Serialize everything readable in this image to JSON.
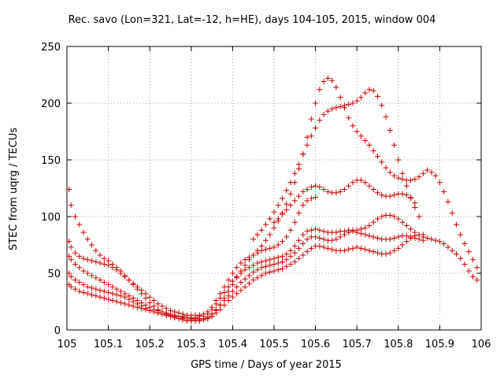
{
  "chart_data": {
    "type": "scatter",
    "title": "Rec. savo (Lon=321, Lat=-12, h=HE), days 104-105, 2015, window 004",
    "xlabel": "GPS time / Days of year 2015",
    "ylabel": "STEC from uqrg / TECUs",
    "xlim": [
      105,
      106
    ],
    "ylim": [
      0,
      250
    ],
    "xticks": [
      "105",
      "105.1",
      "105.2",
      "105.3",
      "105.4",
      "105.5",
      "105.6",
      "105.7",
      "105.8",
      "105.9",
      "106"
    ],
    "yticks": [
      "0",
      "50",
      "100",
      "150",
      "200",
      "250"
    ],
    "grid": true,
    "marker": "+",
    "color": "#cc0000",
    "series": [
      {
        "name": "",
        "x": [
          105.005,
          105.01,
          105.02,
          105.03,
          105.04,
          105.05,
          105.06,
          105.07,
          105.08,
          105.09,
          105.1,
          105.11,
          105.12,
          105.13,
          105.14,
          105.15,
          105.16,
          105.17,
          105.18,
          105.19,
          105.2,
          105.21,
          105.22,
          105.23,
          105.24,
          105.25,
          105.26,
          105.27,
          105.28,
          105.29,
          105.3,
          105.31,
          105.32,
          105.33,
          105.34,
          105.35
        ],
        "y": [
          124,
          110,
          100,
          93,
          86,
          80,
          75,
          70,
          66,
          63,
          61,
          58,
          55,
          52,
          48,
          44,
          40,
          36,
          32,
          28,
          24,
          21,
          18,
          16,
          14,
          13,
          12,
          12,
          11,
          11,
          10,
          10,
          10,
          10,
          11,
          12
        ]
      },
      {
        "name": "",
        "x": [
          105.005,
          105.01,
          105.02,
          105.03,
          105.04,
          105.05,
          105.06,
          105.07,
          105.08,
          105.09,
          105.1,
          105.11,
          105.12,
          105.13,
          105.14,
          105.15,
          105.16,
          105.17,
          105.18,
          105.19,
          105.2,
          105.21,
          105.22,
          105.23,
          105.24,
          105.25,
          105.26,
          105.27,
          105.28,
          105.29,
          105.3,
          105.31,
          105.32,
          105.33,
          105.34,
          105.35,
          105.36,
          105.37,
          105.38,
          105.39,
          105.4,
          105.41,
          105.42,
          105.43,
          105.44,
          105.45,
          105.46,
          105.47,
          105.48,
          105.49,
          105.5,
          105.51,
          105.52,
          105.53,
          105.54,
          105.55,
          105.56,
          105.57,
          105.58,
          105.59,
          105.6
        ],
        "y": [
          78,
          73,
          68,
          65,
          63,
          62,
          61,
          60,
          59,
          58,
          57,
          55,
          53,
          50,
          47,
          44,
          41,
          38,
          35,
          32,
          29,
          26,
          23,
          21,
          19,
          17,
          16,
          15,
          14,
          13,
          13,
          13,
          13,
          14,
          16,
          20,
          26,
          32,
          38,
          44,
          50,
          55,
          59,
          62,
          64,
          66,
          68,
          70,
          71,
          72,
          73,
          75,
          78,
          82,
          88,
          95,
          103,
          110,
          114,
          116,
          117
        ]
      },
      {
        "name": "",
        "x": [
          105.005,
          105.01,
          105.02,
          105.03,
          105.04,
          105.05,
          105.06,
          105.07,
          105.08,
          105.09,
          105.1,
          105.11,
          105.12,
          105.13,
          105.14,
          105.15,
          105.16,
          105.17,
          105.18,
          105.19,
          105.2,
          105.21,
          105.22,
          105.23,
          105.24,
          105.25,
          105.26,
          105.27,
          105.28,
          105.29,
          105.3,
          105.31,
          105.32,
          105.33,
          105.34,
          105.35,
          105.36,
          105.37,
          105.38,
          105.39,
          105.4,
          105.41,
          105.42,
          105.43,
          105.44,
          105.45,
          105.46,
          105.47,
          105.48,
          105.49,
          105.5,
          105.51,
          105.52,
          105.53,
          105.54,
          105.55,
          105.56,
          105.57,
          105.58,
          105.59,
          105.6,
          105.61,
          105.62,
          105.63,
          105.64,
          105.65,
          105.66,
          105.67,
          105.68,
          105.69,
          105.7,
          105.71,
          105.72,
          105.73,
          105.74,
          105.75,
          105.76,
          105.77,
          105.78,
          105.79,
          105.8,
          105.81,
          105.82,
          105.83,
          105.84,
          105.85,
          105.86,
          105.87,
          105.88,
          105.89,
          105.9,
          105.91,
          105.92,
          105.93,
          105.94,
          105.95,
          105.96,
          105.97,
          105.98,
          105.99
        ],
        "y": [
          65,
          62,
          58,
          55,
          52,
          50,
          48,
          46,
          44,
          42,
          40,
          38,
          36,
          34,
          32,
          30,
          28,
          26,
          24,
          22,
          20,
          18,
          17,
          16,
          15,
          14,
          13,
          12,
          12,
          11,
          11,
          11,
          12,
          12,
          14,
          18,
          23,
          28,
          33,
          38,
          43,
          47,
          50,
          53,
          55,
          57,
          59,
          60,
          61,
          62,
          63,
          64,
          65,
          67,
          70,
          74,
          79,
          84,
          87,
          88,
          89,
          88,
          87,
          86,
          86,
          86,
          87,
          87,
          88,
          88,
          88,
          89,
          90,
          92,
          95,
          98,
          100,
          101,
          101,
          100,
          98,
          95,
          92,
          89,
          86,
          84,
          82,
          81,
          80,
          79,
          78,
          76,
          73,
          70,
          67,
          63,
          58,
          52,
          47,
          44
        ]
      },
      {
        "name": "",
        "x": [
          105.005,
          105.01,
          105.02,
          105.03,
          105.04,
          105.05,
          105.06,
          105.07,
          105.08,
          105.09,
          105.1,
          105.11,
          105.12,
          105.13,
          105.14,
          105.15,
          105.16,
          105.17,
          105.18,
          105.19,
          105.2,
          105.21,
          105.22,
          105.23,
          105.24,
          105.25,
          105.26,
          105.27,
          105.28,
          105.29,
          105.3,
          105.31,
          105.32,
          105.33,
          105.34,
          105.35,
          105.36,
          105.37,
          105.38,
          105.39,
          105.4,
          105.41,
          105.42,
          105.43,
          105.44,
          105.45,
          105.46,
          105.47,
          105.48,
          105.49,
          105.5,
          105.51,
          105.52,
          105.53,
          105.54,
          105.55,
          105.56,
          105.57,
          105.58,
          105.59,
          105.6,
          105.61,
          105.62,
          105.63,
          105.64,
          105.65,
          105.66,
          105.67,
          105.68,
          105.69,
          105.7,
          105.71,
          105.72,
          105.73,
          105.74,
          105.75,
          105.76,
          105.77,
          105.78,
          105.79,
          105.8,
          105.81,
          105.82,
          105.83,
          105.84,
          105.85,
          105.86
        ],
        "y": [
          50,
          47,
          44,
          42,
          40,
          38,
          37,
          36,
          35,
          34,
          33,
          32,
          31,
          30,
          29,
          27,
          25,
          23,
          21,
          19,
          17,
          16,
          15,
          14,
          13,
          12,
          11,
          10,
          10,
          9,
          9,
          9,
          9,
          10,
          11,
          14,
          18,
          22,
          26,
          30,
          34,
          38,
          42,
          45,
          48,
          51,
          53,
          55,
          56,
          57,
          58,
          59,
          60,
          62,
          65,
          68,
          72,
          76,
          80,
          82,
          82,
          81,
          80,
          79,
          79,
          80,
          82,
          84,
          86,
          87,
          86,
          85,
          84,
          83,
          82,
          81,
          80,
          80,
          80,
          81,
          82,
          83,
          83,
          82,
          81,
          80,
          79
        ]
      },
      {
        "name": "",
        "x": [
          105.005,
          105.01,
          105.02,
          105.03,
          105.04,
          105.05,
          105.06,
          105.07,
          105.08,
          105.09,
          105.1,
          105.11,
          105.12,
          105.13,
          105.14,
          105.15,
          105.16,
          105.17,
          105.18,
          105.19,
          105.2,
          105.21,
          105.22,
          105.23,
          105.24,
          105.25,
          105.26,
          105.27,
          105.28,
          105.29,
          105.3,
          105.31,
          105.32,
          105.33,
          105.34,
          105.35,
          105.36,
          105.37,
          105.38,
          105.39,
          105.4,
          105.41,
          105.42,
          105.43,
          105.44,
          105.45,
          105.46,
          105.47,
          105.48,
          105.49,
          105.5,
          105.51,
          105.52,
          105.53,
          105.54,
          105.55,
          105.56,
          105.57,
          105.58,
          105.59,
          105.6,
          105.61,
          105.62,
          105.63,
          105.64,
          105.65,
          105.66,
          105.67,
          105.68,
          105.69,
          105.7,
          105.71,
          105.72,
          105.73,
          105.74,
          105.75,
          105.76,
          105.77,
          105.78,
          105.79,
          105.8,
          105.81,
          105.82,
          105.83,
          105.84,
          105.85,
          105.86
        ],
        "y": [
          40,
          38,
          36,
          34,
          33,
          32,
          31,
          30,
          29,
          28,
          27,
          26,
          25,
          24,
          23,
          22,
          21,
          20,
          19,
          18,
          17,
          16,
          15,
          14,
          13,
          12,
          11,
          10,
          9,
          8,
          8,
          8,
          8,
          9,
          10,
          12,
          15,
          18,
          22,
          26,
          29,
          32,
          35,
          38,
          41,
          44,
          46,
          48,
          50,
          51,
          52,
          53,
          54,
          56,
          58,
          60,
          63,
          66,
          69,
          72,
          74,
          74,
          73,
          72,
          71,
          70,
          70,
          70,
          71,
          72,
          73,
          72,
          71,
          70,
          69,
          68,
          67,
          67,
          68,
          70,
          72,
          75,
          78,
          81,
          83,
          84,
          84
        ]
      },
      {
        "name": "",
        "x": [
          105.35,
          105.36,
          105.37,
          105.38,
          105.39,
          105.4,
          105.41,
          105.42,
          105.43,
          105.44,
          105.45,
          105.46,
          105.47,
          105.48,
          105.49,
          105.5,
          105.51,
          105.52,
          105.53,
          105.54,
          105.55,
          105.56,
          105.57,
          105.58,
          105.59,
          105.6,
          105.61,
          105.62,
          105.63,
          105.64,
          105.65,
          105.66,
          105.67,
          105.68,
          105.69,
          105.7,
          105.71,
          105.72,
          105.73,
          105.74,
          105.75,
          105.76,
          105.77,
          105.78,
          105.79,
          105.8,
          105.81,
          105.82,
          105.83,
          105.84,
          105.85,
          105.86,
          105.87,
          105.88,
          105.89,
          105.9,
          105.91,
          105.92,
          105.93,
          105.94,
          105.95,
          105.96,
          105.97,
          105.98,
          105.99
        ],
        "y": [
          14,
          17,
          22,
          28,
          34,
          40,
          46,
          52,
          57,
          62,
          66,
          70,
          74,
          79,
          84,
          90,
          96,
          103,
          111,
          120,
          130,
          142,
          155,
          170,
          186,
          200,
          212,
          219,
          222,
          220,
          214,
          205,
          196,
          187,
          180,
          175,
          171,
          167,
          163,
          158,
          153,
          148,
          143,
          139,
          136,
          134,
          133,
          132,
          132,
          133,
          135,
          138,
          141,
          139,
          136,
          130,
          122,
          113,
          103,
          93,
          84,
          76,
          69,
          62,
          55
        ]
      },
      {
        "name": "",
        "x": [
          105.45,
          105.46,
          105.47,
          105.48,
          105.49,
          105.5,
          105.51,
          105.52,
          105.53,
          105.54,
          105.55,
          105.56,
          105.57,
          105.58,
          105.59,
          105.6,
          105.61,
          105.62,
          105.63,
          105.64,
          105.65,
          105.66,
          105.67,
          105.68,
          105.69,
          105.7,
          105.71,
          105.72,
          105.73,
          105.74,
          105.75,
          105.76,
          105.77,
          105.78,
          105.79,
          105.8,
          105.81,
          105.82,
          105.83,
          105.84,
          105.85
        ],
        "y": [
          80,
          84,
          88,
          93,
          98,
          104,
          110,
          116,
          123,
          130,
          138,
          146,
          155,
          163,
          171,
          178,
          185,
          190,
          193,
          195,
          196,
          197,
          198,
          199,
          200,
          202,
          205,
          209,
          212,
          211,
          206,
          198,
          188,
          176,
          163,
          150,
          138,
          127,
          117,
          108,
          100
        ]
      },
      {
        "name": "",
        "x": [
          105.5,
          105.51,
          105.52,
          105.53,
          105.54,
          105.55,
          105.56,
          105.57,
          105.58,
          105.59,
          105.6,
          105.61,
          105.62,
          105.63,
          105.64,
          105.65,
          105.66,
          105.67,
          105.68,
          105.69,
          105.7,
          105.71,
          105.72,
          105.73,
          105.74,
          105.75,
          105.76,
          105.77,
          105.78,
          105.79,
          105.8,
          105.81,
          105.82,
          105.83,
          105.84
        ],
        "y": [
          95,
          98,
          102,
          106,
          110,
          114,
          118,
          122,
          124,
          126,
          127,
          126,
          124,
          122,
          121,
          121,
          122,
          124,
          127,
          130,
          132,
          132,
          130,
          127,
          124,
          121,
          119,
          118,
          118,
          119,
          120,
          120,
          119,
          116,
          112
        ]
      }
    ]
  }
}
